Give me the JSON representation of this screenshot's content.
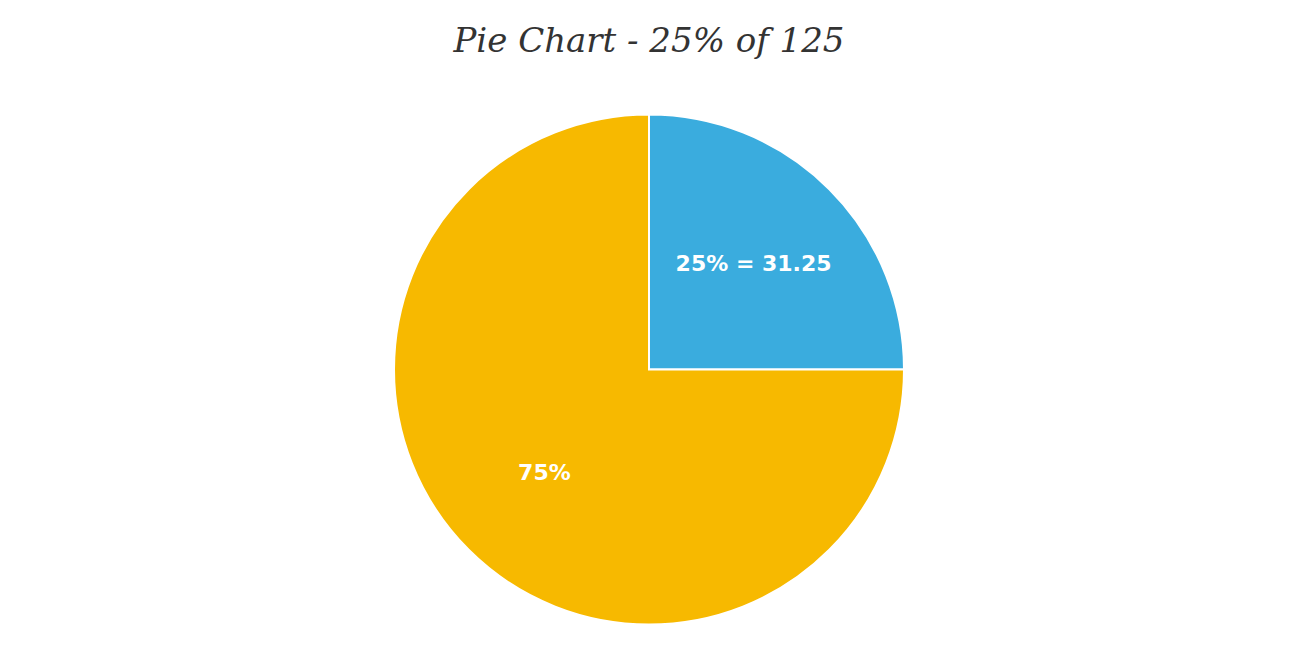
{
  "chart_data": {
    "type": "pie",
    "title": "Pie Chart - 25% of 125",
    "values": [
      25,
      75
    ],
    "value_labels": [
      "25% = 31.25",
      "75%"
    ],
    "colors": [
      "#3aacde",
      "#f7b900"
    ],
    "data_labels": true
  }
}
